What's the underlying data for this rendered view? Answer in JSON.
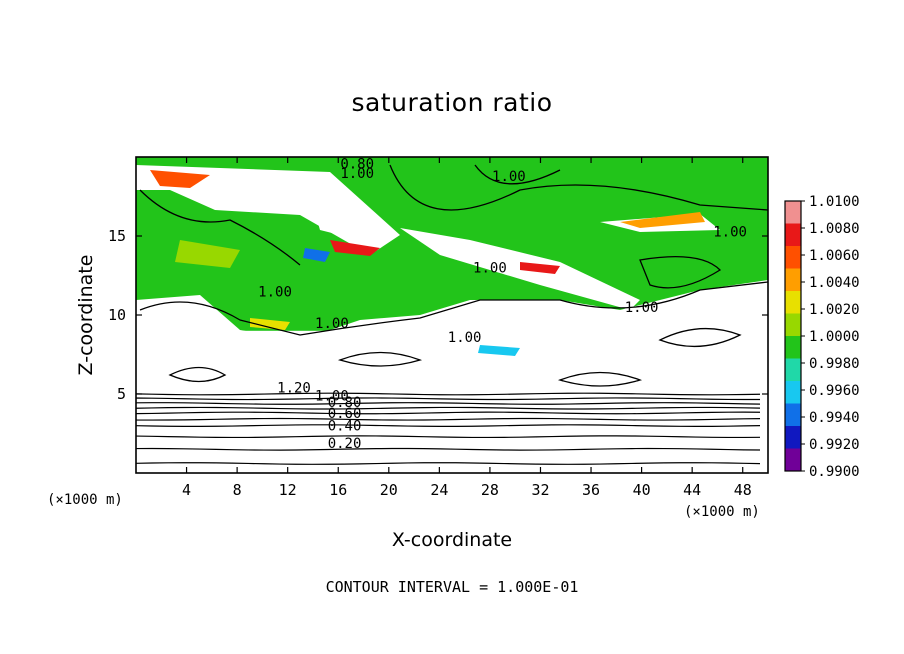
{
  "chart_data": {
    "type": "heatmap",
    "title": "saturation ratio",
    "xlabel": "X-coordinate",
    "ylabel": "Z-coordinate",
    "x_unit": "(×1000 m)",
    "z_unit": "(×1000 m)",
    "xlim": [
      0,
      50
    ],
    "ylim": [
      0,
      20
    ],
    "x_ticks": [
      4,
      8,
      12,
      16,
      20,
      24,
      28,
      32,
      36,
      40,
      44,
      48
    ],
    "y_ticks": [
      5,
      10,
      15
    ],
    "colorbar": {
      "levels": [
        "1.0100",
        "1.0080",
        "1.0060",
        "1.0040",
        "1.0020",
        "1.0000",
        "0.9980",
        "0.9960",
        "0.9940",
        "0.9920",
        "0.9900"
      ],
      "colors": [
        "#f09090",
        "#e81818",
        "#ff5000",
        "#ff9e00",
        "#e8e000",
        "#98d800",
        "#22c41a",
        "#20d8a8",
        "#18c8f0",
        "#1070e8",
        "#1018c0",
        "#700098"
      ]
    },
    "contour_labels": [
      {
        "text": "0.80",
        "x": 17.5,
        "z": 19.6
      },
      {
        "text": "1.00",
        "x": 17.5,
        "z": 19.0
      },
      {
        "text": "1.00",
        "x": 29.5,
        "z": 18.8
      },
      {
        "text": "1.00",
        "x": 47.0,
        "z": 15.3
      },
      {
        "text": "1.00",
        "x": 28.0,
        "z": 13.0
      },
      {
        "text": "1.00",
        "x": 11.0,
        "z": 11.5
      },
      {
        "text": "1.00",
        "x": 40.0,
        "z": 10.5
      },
      {
        "text": "1.00",
        "x": 15.5,
        "z": 9.5
      },
      {
        "text": "1.00",
        "x": 26.0,
        "z": 8.6
      },
      {
        "text": "1.20",
        "x": 12.5,
        "z": 5.4
      },
      {
        "text": "1.00",
        "x": 15.5,
        "z": 4.9
      },
      {
        "text": "0.80",
        "x": 16.5,
        "z": 4.5
      },
      {
        "text": "0.60",
        "x": 16.5,
        "z": 3.8
      },
      {
        "text": "0.40",
        "x": 16.5,
        "z": 3.0
      },
      {
        "text": "0.20",
        "x": 16.5,
        "z": 1.9
      }
    ],
    "contour_interval": "CONTOUR INTERVAL = 1.000E-01"
  }
}
